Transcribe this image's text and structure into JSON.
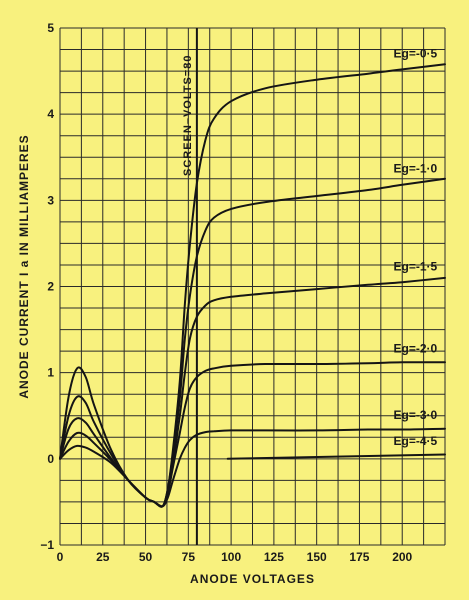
{
  "chart_data": {
    "type": "line",
    "xlabel": "ANODE VOLTAGES",
    "ylabel": "ANODE CURRENT I a IN MILLIAMPERES",
    "xlim": [
      0,
      225
    ],
    "ylim": [
      -1,
      5
    ],
    "grid": true,
    "x_ticks": [
      {
        "value": 0,
        "label": "0"
      },
      {
        "value": 25,
        "label": "25"
      },
      {
        "value": 50,
        "label": "50"
      },
      {
        "value": 75,
        "label": "75"
      },
      {
        "value": 100,
        "label": "100"
      },
      {
        "value": 125,
        "label": "125"
      },
      {
        "value": 150,
        "label": "150"
      },
      {
        "value": 175,
        "label": "175"
      },
      {
        "value": 200,
        "label": "200"
      }
    ],
    "y_ticks": [
      {
        "value": -1,
        "label": "−1"
      },
      {
        "value": 0,
        "label": "0"
      },
      {
        "value": 1,
        "label": "1"
      },
      {
        "value": 2,
        "label": "2"
      },
      {
        "value": 3,
        "label": "3"
      },
      {
        "value": 4,
        "label": "4"
      },
      {
        "value": 5,
        "label": "5"
      }
    ],
    "annotation": {
      "x": 80,
      "text": "SCREEN–VOLTS=80"
    },
    "series": [
      {
        "name": "Eg=-0·5",
        "x": [
          0,
          5,
          10,
          15,
          20,
          30,
          40,
          50,
          55,
          60,
          63,
          66,
          70,
          73,
          76,
          80,
          85,
          90,
          100,
          120,
          150,
          180,
          200,
          225
        ],
        "y": [
          0,
          0.72,
          1.05,
          0.95,
          0.62,
          0.1,
          -0.25,
          -0.45,
          -0.5,
          -0.55,
          -0.35,
          0.1,
          0.9,
          1.8,
          2.5,
          3.2,
          3.7,
          3.95,
          4.15,
          4.3,
          4.4,
          4.47,
          4.52,
          4.58
        ]
      },
      {
        "name": "Eg=-1·0",
        "x": [
          0,
          5,
          10,
          15,
          20,
          30,
          40,
          50,
          55,
          60,
          63,
          66,
          70,
          73,
          76,
          80,
          85,
          90,
          100,
          120,
          150,
          180,
          200,
          225
        ],
        "y": [
          0,
          0.5,
          0.72,
          0.65,
          0.42,
          0.05,
          -0.25,
          -0.45,
          -0.5,
          -0.55,
          -0.35,
          0.05,
          0.7,
          1.4,
          1.9,
          2.35,
          2.65,
          2.8,
          2.9,
          2.98,
          3.05,
          3.12,
          3.18,
          3.25
        ]
      },
      {
        "name": "Eg=-1·5",
        "x": [
          0,
          5,
          10,
          15,
          20,
          30,
          40,
          50,
          55,
          60,
          63,
          66,
          70,
          73,
          76,
          80,
          85,
          90,
          100,
          120,
          150,
          180,
          200,
          225
        ],
        "y": [
          0,
          0.35,
          0.47,
          0.42,
          0.28,
          0,
          -0.25,
          -0.45,
          -0.5,
          -0.55,
          -0.38,
          -0.05,
          0.5,
          1.0,
          1.4,
          1.65,
          1.78,
          1.84,
          1.88,
          1.92,
          1.97,
          2.02,
          2.05,
          2.1
        ]
      },
      {
        "name": "Eg=-2·0",
        "x": [
          0,
          5,
          10,
          15,
          20,
          30,
          40,
          50,
          55,
          60,
          63,
          66,
          70,
          73,
          76,
          80,
          85,
          90,
          100,
          120,
          150,
          180,
          200,
          225
        ],
        "y": [
          0,
          0.2,
          0.3,
          0.27,
          0.18,
          -0.02,
          -0.25,
          -0.45,
          -0.5,
          -0.55,
          -0.4,
          -0.1,
          0.3,
          0.6,
          0.82,
          0.95,
          1.02,
          1.05,
          1.08,
          1.1,
          1.1,
          1.11,
          1.12,
          1.12
        ]
      },
      {
        "name": "Eg=-3·0",
        "x": [
          0,
          5,
          10,
          15,
          20,
          30,
          40,
          50,
          55,
          60,
          63,
          66,
          70,
          73,
          76,
          80,
          85,
          90,
          100,
          120,
          150,
          180,
          200,
          225
        ],
        "y": [
          0,
          0.1,
          0.15,
          0.13,
          0.08,
          -0.05,
          -0.25,
          -0.45,
          -0.5,
          -0.55,
          -0.45,
          -0.25,
          0,
          0.13,
          0.22,
          0.28,
          0.31,
          0.32,
          0.33,
          0.33,
          0.33,
          0.34,
          0.34,
          0.35
        ]
      },
      {
        "name": "Eg=-4·5",
        "x": [
          98,
          225
        ],
        "y": [
          0,
          0.05
        ]
      }
    ]
  }
}
